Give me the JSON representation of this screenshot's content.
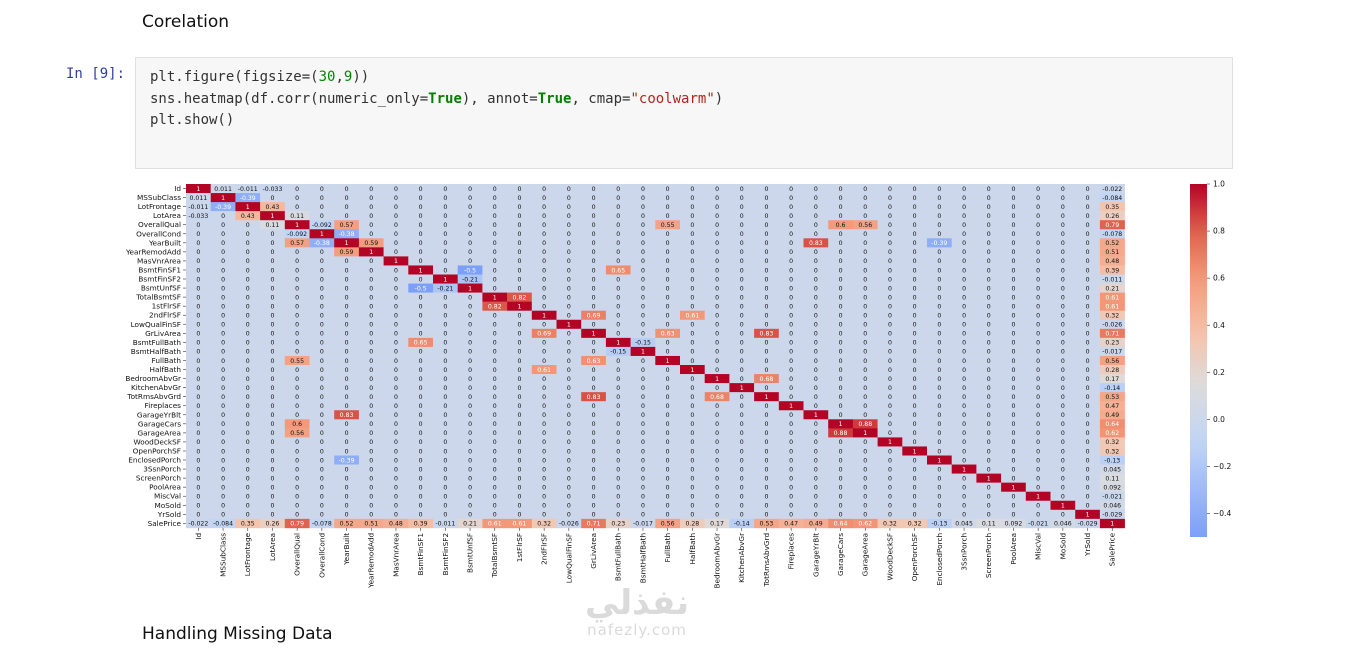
{
  "heading_top": "Corelation",
  "heading_bottom": "Handling Missing Data",
  "cell": {
    "prompt": "In [9]:",
    "code": [
      [
        {
          "t": "plt.figure(figsize=("
        },
        {
          "t": "30",
          "c": "num"
        },
        {
          "t": ","
        },
        {
          "t": "9",
          "c": "num"
        },
        {
          "t": "))"
        }
      ],
      [
        {
          "t": "sns.heatmap(df.corr(numeric_only="
        },
        {
          "t": "True",
          "c": "kw"
        },
        {
          "t": "), annot="
        },
        {
          "t": "True",
          "c": "kw"
        },
        {
          "t": ", cmap="
        },
        {
          "t": "\"coolwarm\"",
          "c": "str"
        },
        {
          "t": ")"
        }
      ],
      [
        {
          "t": "plt.show()"
        }
      ]
    ]
  },
  "chart_data": {
    "type": "heatmap",
    "cmap": "coolwarm",
    "annotated": true,
    "variables": [
      "Id",
      "MSSubClass",
      "LotFrontage",
      "LotArea",
      "OverallQual",
      "OverallCond",
      "YearBuilt",
      "YearRemodAdd",
      "MasVnrArea",
      "BsmtFinSF1",
      "BsmtFinSF2",
      "BsmtUnfSF",
      "TotalBsmtSF",
      "1stFlrSF",
      "2ndFlrSF",
      "LowQualFinSF",
      "GrLivArea",
      "BsmtFullBath",
      "BsmtHalfBath",
      "FullBath",
      "HalfBath",
      "BedroomAbvGr",
      "KitchenAbvGr",
      "TotRmsAbvGrd",
      "Fireplaces",
      "GarageYrBlt",
      "GarageCars",
      "GarageArea",
      "WoodDeckSF",
      "OpenPorchSF",
      "EnclosedPorch",
      "3SsnPorch",
      "ScreenPorch",
      "PoolArea",
      "MiscVal",
      "MoSold",
      "YrSold",
      "SalePrice"
    ],
    "colorbar_ticks": [
      "1.0",
      "0.8",
      "0.6",
      "0.4",
      "0.2",
      "0.0",
      "−0.2",
      "−0.4"
    ],
    "colorbar_range": [
      -0.5,
      1.0
    ],
    "known_values": [
      [
        "OverallQual",
        "SalePrice",
        0.79
      ],
      [
        "GrLivArea",
        "SalePrice",
        0.71
      ],
      [
        "GarageCars",
        "SalePrice",
        0.64
      ],
      [
        "GarageArea",
        "SalePrice",
        0.62
      ],
      [
        "TotalBsmtSF",
        "SalePrice",
        0.61
      ],
      [
        "1stFlrSF",
        "SalePrice",
        0.61
      ],
      [
        "FullBath",
        "SalePrice",
        0.56
      ],
      [
        "TotRmsAbvGrd",
        "SalePrice",
        0.53
      ],
      [
        "YearBuilt",
        "SalePrice",
        0.52
      ],
      [
        "YearRemodAdd",
        "SalePrice",
        0.51
      ],
      [
        "GarageYrBlt",
        "SalePrice",
        0.49
      ],
      [
        "MasVnrArea",
        "SalePrice",
        0.48
      ],
      [
        "Fireplaces",
        "SalePrice",
        0.47
      ],
      [
        "BsmtFinSF1",
        "SalePrice",
        0.39
      ],
      [
        "LotFrontage",
        "SalePrice",
        0.35
      ],
      [
        "WoodDeckSF",
        "SalePrice",
        0.32
      ],
      [
        "2ndFlrSF",
        "SalePrice",
        0.32
      ],
      [
        "OpenPorchSF",
        "SalePrice",
        0.32
      ],
      [
        "HalfBath",
        "SalePrice",
        0.28
      ],
      [
        "LotArea",
        "SalePrice",
        0.26
      ],
      [
        "BsmtFullBath",
        "SalePrice",
        0.23
      ],
      [
        "BsmtUnfSF",
        "SalePrice",
        0.21
      ],
      [
        "BedroomAbvGr",
        "SalePrice",
        0.17
      ],
      [
        "ScreenPorch",
        "SalePrice",
        0.11
      ],
      [
        "PoolArea",
        "SalePrice",
        0.092
      ],
      [
        "MoSold",
        "SalePrice",
        0.046
      ],
      [
        "3SsnPorch",
        "SalePrice",
        0.045
      ],
      [
        "BsmtFinSF2",
        "SalePrice",
        -0.011
      ],
      [
        "BsmtHalfBath",
        "SalePrice",
        -0.017
      ],
      [
        "MiscVal",
        "SalePrice",
        -0.021
      ],
      [
        "Id",
        "SalePrice",
        -0.022
      ],
      [
        "LowQualFinSF",
        "SalePrice",
        -0.026
      ],
      [
        "YrSold",
        "SalePrice",
        -0.029
      ],
      [
        "OverallCond",
        "SalePrice",
        -0.078
      ],
      [
        "MSSubClass",
        "SalePrice",
        -0.084
      ],
      [
        "EnclosedPorch",
        "SalePrice",
        -0.13
      ],
      [
        "KitchenAbvGr",
        "SalePrice",
        -0.14
      ],
      [
        "GarageCars",
        "GarageArea",
        0.88
      ],
      [
        "YearBuilt",
        "GarageYrBlt",
        0.83
      ],
      [
        "GrLivArea",
        "TotRmsAbvGrd",
        0.83
      ],
      [
        "TotalBsmtSF",
        "1stFlrSF",
        0.82
      ],
      [
        "2ndFlrSF",
        "GrLivArea",
        0.69
      ],
      [
        "BedroomAbvGr",
        "TotRmsAbvGrd",
        0.68
      ],
      [
        "BsmtFinSF1",
        "BsmtFullBath",
        0.65
      ],
      [
        "GrLivArea",
        "FullBath",
        0.63
      ],
      [
        "2ndFlrSF",
        "HalfBath",
        0.61
      ],
      [
        "OverallQual",
        "GarageCars",
        0.6
      ],
      [
        "YearBuilt",
        "YearRemodAdd",
        0.59
      ],
      [
        "OverallQual",
        "YearBuilt",
        0.57
      ],
      [
        "OverallQual",
        "GarageArea",
        0.56
      ],
      [
        "OverallQual",
        "FullBath",
        0.55
      ],
      [
        "OverallQual",
        "OverallCond",
        -0.092
      ],
      [
        "OverallCond",
        "YearBuilt",
        -0.38
      ],
      [
        "BsmtFinSF1",
        "BsmtUnfSF",
        -0.5
      ],
      [
        "BsmtFullBath",
        "BsmtHalfBath",
        -0.15
      ],
      [
        "BsmtFinSF2",
        "BsmtUnfSF",
        -0.21
      ],
      [
        "YearBuilt",
        "EnclosedPorch",
        -0.39
      ],
      [
        "OverallQual",
        "LotArea",
        0.11
      ],
      [
        "LotFrontage",
        "LotArea",
        0.43
      ],
      [
        "MSSubClass",
        "LotFrontage",
        -0.39
      ],
      [
        "Id",
        "LotArea",
        -0.033
      ],
      [
        "Id",
        "MSSubClass",
        0.011
      ],
      [
        "Id",
        "LotFrontage",
        -0.011
      ]
    ]
  },
  "watermark": {
    "arabic": "نفذلي",
    "latin": "nafezly.com"
  }
}
